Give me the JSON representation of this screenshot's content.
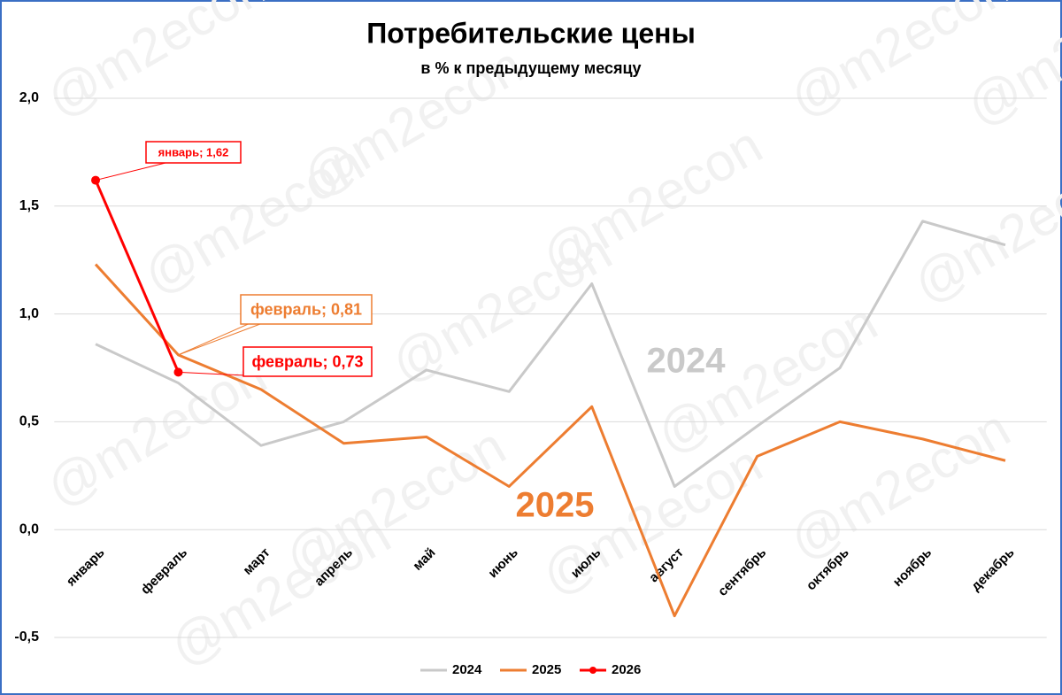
{
  "chart_data": {
    "type": "line",
    "title": "Потребительские цены",
    "subtitle": "в % к предыдущему месяцу",
    "watermark": "@m2econ",
    "categories": [
      "январь",
      "февраль",
      "март",
      "апрель",
      "май",
      "июнь",
      "июль",
      "август",
      "сентябрь",
      "октябрь",
      "ноябрь",
      "декабрь"
    ],
    "series": [
      {
        "name": "2024",
        "color": "#c9c9c9",
        "values": [
          0.86,
          0.68,
          0.39,
          0.5,
          0.74,
          0.64,
          1.14,
          0.2,
          0.48,
          0.75,
          1.43,
          1.32
        ]
      },
      {
        "name": "2025",
        "color": "#ed7d31",
        "values": [
          1.23,
          0.81,
          0.65,
          0.4,
          0.43,
          0.2,
          0.57,
          -0.4,
          0.34,
          0.5,
          0.42,
          0.32
        ],
        "value_labels": [
          null,
          "февраль; 0,81",
          null,
          null,
          null,
          null,
          null,
          null,
          null,
          null,
          null,
          null
        ]
      },
      {
        "name": "2026",
        "color": "#ff0000",
        "markers": true,
        "values": [
          1.62,
          0.73,
          null,
          null,
          null,
          null,
          null,
          null,
          null,
          null,
          null,
          null
        ],
        "value_labels": [
          "январь; 1,62",
          "февраль; 0,73",
          null,
          null,
          null,
          null,
          null,
          null,
          null,
          null,
          null,
          null
        ]
      }
    ],
    "ylim": [
      -0.5,
      2.0
    ],
    "yticks": [
      {
        "value": -0.5,
        "label": "-0,5"
      },
      {
        "value": 0,
        "label": "0,0"
      },
      {
        "value": 0.5,
        "label": "0,5"
      },
      {
        "value": 1,
        "label": "1,0"
      },
      {
        "value": 1.5,
        "label": "1,5"
      },
      {
        "value": 2,
        "label": "2,0"
      }
    ],
    "grid": true,
    "legend": "bottom"
  }
}
